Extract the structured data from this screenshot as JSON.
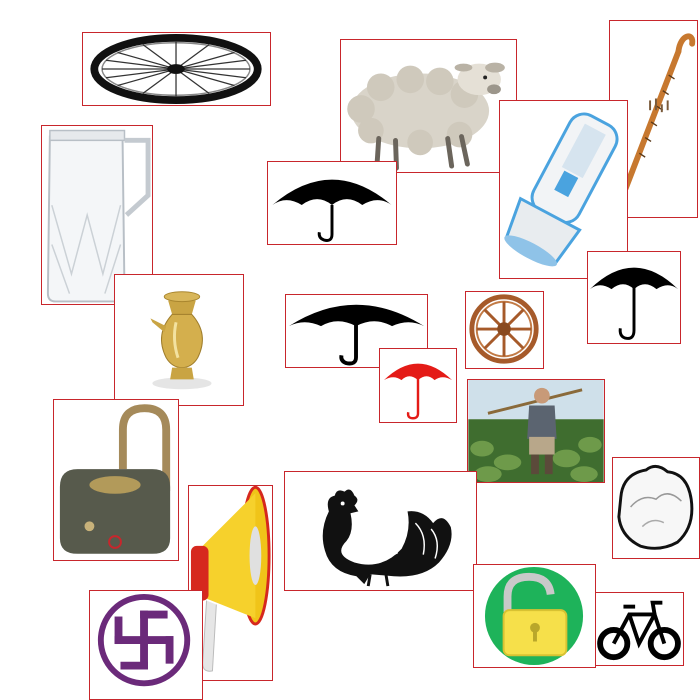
{
  "canvas": {
    "background": "#ffffff",
    "border_color": "#c8262c"
  },
  "items": [
    {
      "name": "wheel-icon"
    },
    {
      "name": "sheep-icon"
    },
    {
      "name": "walking-stick-icon"
    },
    {
      "name": "jug-icon"
    },
    {
      "name": "flashlight-icon"
    },
    {
      "name": "umbrella-icon"
    },
    {
      "name": "kettle-icon"
    },
    {
      "name": "umbrella-icon"
    },
    {
      "name": "cart-wheel-icon"
    },
    {
      "name": "umbrella-icon"
    },
    {
      "name": "umbrella-icon",
      "color": "#e41b17"
    },
    {
      "name": "farmer-icon"
    },
    {
      "name": "padlock-open-icon"
    },
    {
      "name": "megaphone-icon"
    },
    {
      "name": "rooster-icon"
    },
    {
      "name": "unlock-icon"
    },
    {
      "name": "bicycle-icon"
    },
    {
      "name": "swastika-icon",
      "color": "#6b2a7a"
    },
    {
      "name": "broken-shell-icon"
    }
  ]
}
